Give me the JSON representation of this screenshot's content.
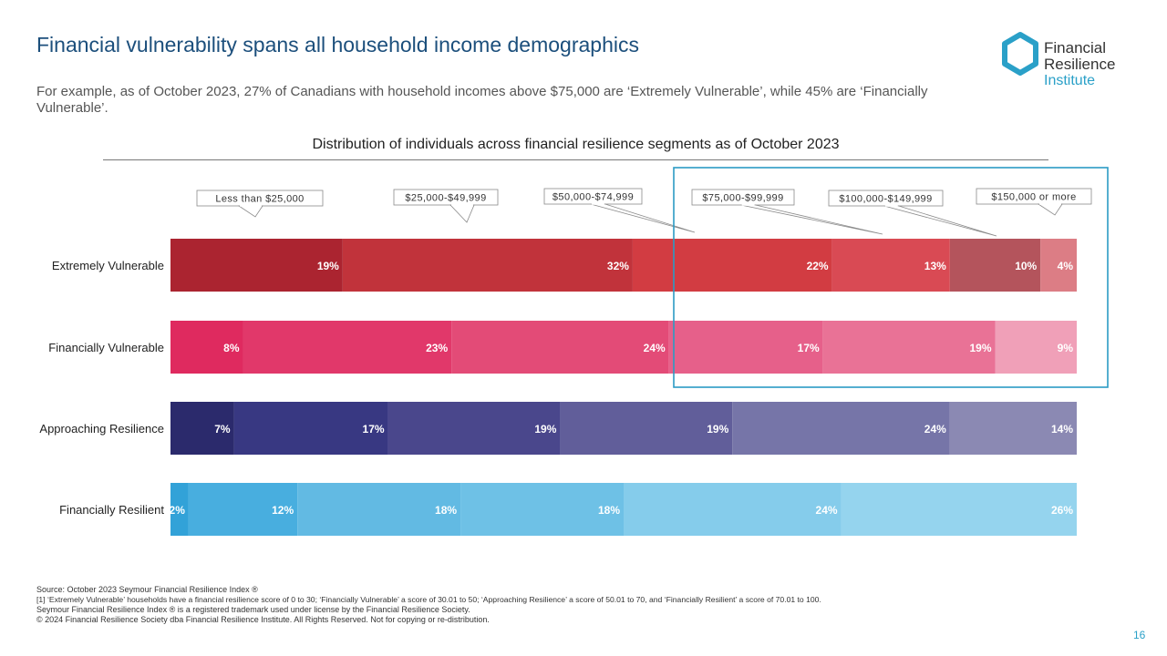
{
  "header": {
    "title": "Financial vulnerability spans all household income demographics",
    "subtitle": "For example, as of October 2023, 27% of Canadians with household incomes above $75,000 are ‘Extremely Vulnerable’, while 45% are ‘Financially Vulnerable’."
  },
  "logo": {
    "line1": "Financial",
    "line2": "Resilience",
    "line3": "Institute"
  },
  "chart_data": {
    "type": "bar",
    "orientation": "horizontal-stacked-100",
    "title": "Distribution of individuals across financial resilience segments as of October 2023",
    "categories": [
      "Extremely Vulnerable",
      "Financially Vulnerable",
      "Approaching Resilience",
      "Financially Resilient"
    ],
    "series": [
      {
        "name": "Less than $25,000",
        "values": [
          19,
          8,
          7,
          2
        ]
      },
      {
        "name": "$25,000-$49,999",
        "values": [
          32,
          23,
          17,
          12
        ]
      },
      {
        "name": "$50,000-$74,999",
        "values": [
          22,
          24,
          19,
          18
        ]
      },
      {
        "name": "$75,000-$99,999",
        "values": [
          13,
          17,
          19,
          18
        ]
      },
      {
        "name": "$100,000-$149,999",
        "values": [
          10,
          19,
          24,
          24
        ]
      },
      {
        "name": "$150,000 or more",
        "values": [
          4,
          9,
          14,
          26
        ]
      }
    ],
    "data_labels_displayed": [
      [
        "19%",
        "32%",
        "22%",
        "13%",
        "10%",
        "4%"
      ],
      [
        "8%",
        "23%",
        "24%",
        "17%",
        "19%",
        "9%"
      ],
      [
        "7%",
        "17%",
        "19%",
        "19%",
        "24%",
        "14%"
      ],
      [
        "2%",
        "12%",
        "18%",
        "18%",
        "24%",
        "26%"
      ]
    ],
    "xlim": [
      0,
      100
    ],
    "legend": "callouts-top",
    "grid": false,
    "colors": [
      [
        "#ab2430",
        "#c1333b",
        "#d23c42",
        "#d94a54",
        "#b4545c",
        "#dc7d85"
      ],
      [
        "#df2a5f",
        "#e1386a",
        "#e34b77",
        "#e6608a",
        "#e97296",
        "#f0a0b8"
      ],
      [
        "#2b2a6c",
        "#383882",
        "#4a478c",
        "#615e9a",
        "#7675a8",
        "#8b89b3"
      ],
      [
        "#32a2d8",
        "#48aedf",
        "#62bae3",
        "#6ec1e6",
        "#85cceb",
        "#95d4ee"
      ]
    ],
    "highlight": "$75,000 and above"
  },
  "footnotes": {
    "source": "Source: October 2023 Seymour Financial Resilience Index ®",
    "note1": "[1] ‘Extremely Vulnerable’ households have a financial resilience score of 0 to 30; ‘Financially Vulnerable’ a score of 30.01 to 50; ‘Approaching Resilience’ a score of 50.01 to 70, and ‘Financially Resilient’ a score of 70.01 to 100.",
    "trademark": "Seymour Financial Resilience Index ® is a registered trademark used under license by the Financial Resilience Society.",
    "copyright": "© 2024 Financial Resilience Society dba Financial Resilience Institute. All Rights Reserved. Not for copying or re-distribution."
  },
  "page_number": "16"
}
